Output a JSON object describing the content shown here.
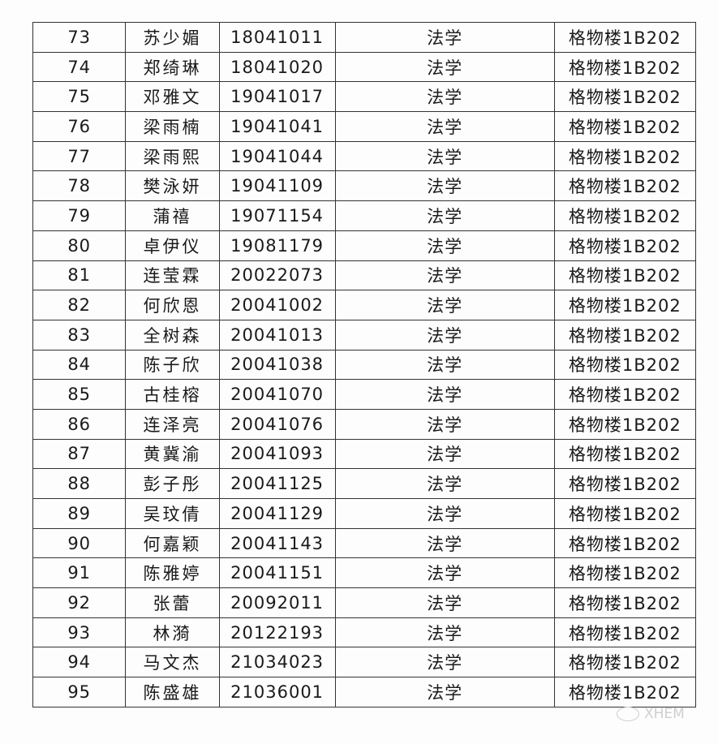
{
  "table": {
    "rows": [
      [
        "73",
        "苏少媚",
        "18041011",
        "法学",
        "格物楼1B202"
      ],
      [
        "74",
        "郑绮琳",
        "18041020",
        "法学",
        "格物楼1B202"
      ],
      [
        "75",
        "邓雅文",
        "19041017",
        "法学",
        "格物楼1B202"
      ],
      [
        "76",
        "梁雨楠",
        "19041041",
        "法学",
        "格物楼1B202"
      ],
      [
        "77",
        "梁雨熙",
        "19041044",
        "法学",
        "格物楼1B202"
      ],
      [
        "78",
        "樊泳妍",
        "19041109",
        "法学",
        "格物楼1B202"
      ],
      [
        "79",
        "蒲禧",
        "19071154",
        "法学",
        "格物楼1B202"
      ],
      [
        "80",
        "卓伊仪",
        "19081179",
        "法学",
        "格物楼1B202"
      ],
      [
        "81",
        "连莹霖",
        "20022073",
        "法学",
        "格物楼1B202"
      ],
      [
        "82",
        "何欣恩",
        "20041002",
        "法学",
        "格物楼1B202"
      ],
      [
        "83",
        "全树森",
        "20041013",
        "法学",
        "格物楼1B202"
      ],
      [
        "84",
        "陈子欣",
        "20041038",
        "法学",
        "格物楼1B202"
      ],
      [
        "85",
        "古桂榕",
        "20041070",
        "法学",
        "格物楼1B202"
      ],
      [
        "86",
        "连泽亮",
        "20041076",
        "法学",
        "格物楼1B202"
      ],
      [
        "87",
        "黄冀渝",
        "20041093",
        "法学",
        "格物楼1B202"
      ],
      [
        "88",
        "彭子彤",
        "20041125",
        "法学",
        "格物楼1B202"
      ],
      [
        "89",
        "吴玟倩",
        "20041129",
        "法学",
        "格物楼1B202"
      ],
      [
        "90",
        "何嘉颖",
        "20041143",
        "法学",
        "格物楼1B202"
      ],
      [
        "91",
        "陈雅婷",
        "20041151",
        "法学",
        "格物楼1B202"
      ],
      [
        "92",
        "张蕾",
        "20092011",
        "法学",
        "格物楼1B202"
      ],
      [
        "93",
        "林漪",
        "20122193",
        "法学",
        "格物楼1B202"
      ],
      [
        "94",
        "马文杰",
        "21034023",
        "法学",
        "格物楼1B202"
      ],
      [
        "95",
        "陈盛雄",
        "21036001",
        "法学",
        "格物楼1B202"
      ]
    ]
  },
  "watermark": {
    "text": "XHEM",
    "icon": "wechat-icon"
  }
}
